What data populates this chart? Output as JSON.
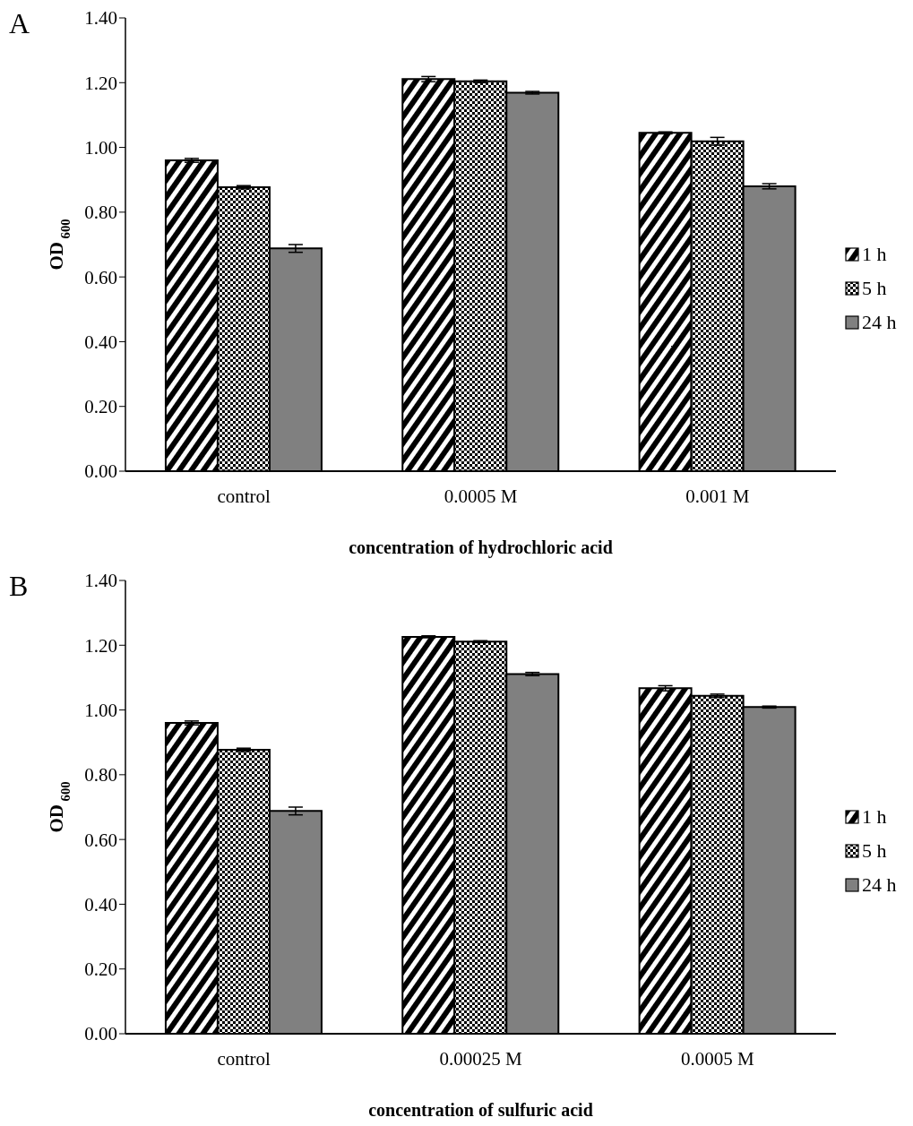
{
  "chart_data": [
    {
      "type": "bar",
      "title": "A",
      "xlabel": "concentration of hydrochloric acid",
      "ylabel": "OD$_{600}$",
      "categories": [
        "control",
        "0.0005 M",
        "0.001 M"
      ],
      "series": [
        {
          "name": "1 h",
          "color": "#000000",
          "values": [
            0.96,
            1.211,
            1.045
          ],
          "errors": [
            0.006,
            0.008,
            0.003
          ]
        },
        {
          "name": "5 h",
          "color": "#000000",
          "values": [
            0.877,
            1.204,
            1.019
          ],
          "errors": [
            0.005,
            0.004,
            0.012
          ]
        },
        {
          "name": "24 h",
          "color": "#808080",
          "values": [
            0.688,
            1.169,
            0.88
          ],
          "errors": [
            0.012,
            0.004,
            0.008
          ]
        }
      ],
      "ylim": [
        0,
        1.4
      ],
      "yticks": [
        {
          "value": 0,
          "label": "0.00"
        },
        {
          "value": 0.2,
          "label": "0.20"
        },
        {
          "value": 0.4,
          "label": "0.40"
        },
        {
          "value": 0.6,
          "label": "0.60"
        },
        {
          "value": 0.8,
          "label": "0.80"
        },
        {
          "value": 1,
          "label": "1.00"
        },
        {
          "value": 1.2,
          "label": "1.20"
        },
        {
          "value": 1.4,
          "label": "1.40"
        }
      ],
      "legend": "right"
    },
    {
      "type": "bar",
      "title": "B",
      "xlabel": "concentration of sulfuric acid",
      "ylabel": "OD$_{600}$",
      "categories": [
        "control",
        "0.00025 M",
        "0.0005 M"
      ],
      "series": [
        {
          "name": "1 h",
          "color": "#000000",
          "values": [
            0.96,
            1.226,
            1.067
          ],
          "errors": [
            0.006,
            0.003,
            0.008
          ]
        },
        {
          "name": "5 h",
          "color": "#000000",
          "values": [
            0.877,
            1.211,
            1.044
          ],
          "errors": [
            0.005,
            0.003,
            0.005
          ]
        },
        {
          "name": "24 h",
          "color": "#808080",
          "values": [
            0.688,
            1.111,
            1.009
          ],
          "errors": [
            0.012,
            0.005,
            0.003
          ]
        }
      ],
      "ylim": [
        0,
        1.4
      ],
      "yticks": [
        {
          "value": 0,
          "label": "0.00"
        },
        {
          "value": 0.2,
          "label": "0.20"
        },
        {
          "value": 0.4,
          "label": "0.40"
        },
        {
          "value": 0.6,
          "label": "0.60"
        },
        {
          "value": 0.8,
          "label": "0.80"
        },
        {
          "value": 1,
          "label": "1.00"
        },
        {
          "value": 1.2,
          "label": "1.20"
        },
        {
          "value": 1.4,
          "label": "1.40"
        }
      ],
      "legend": "right"
    }
  ]
}
